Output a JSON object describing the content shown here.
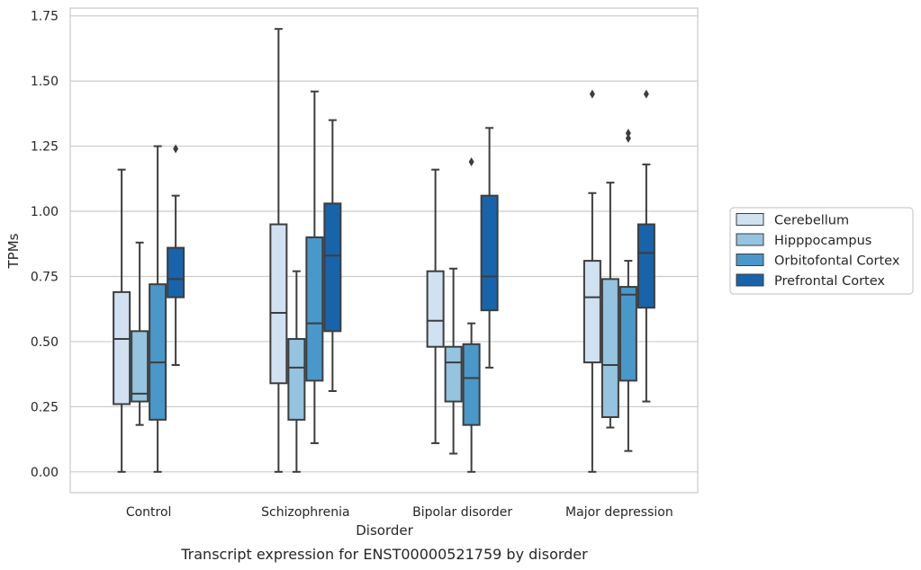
{
  "chart_data": {
    "type": "box",
    "title": "Transcript expression for ENST00000521759 by disorder",
    "xlabel": "Disorder",
    "ylabel": "TPMs",
    "ylim": [
      -0.08,
      1.78
    ],
    "yticks": [
      "0.00",
      "0.25",
      "0.50",
      "0.75",
      "1.00",
      "1.25",
      "1.50",
      "1.75"
    ],
    "ytick_values": [
      0,
      0.25,
      0.5,
      0.75,
      1.0,
      1.25,
      1.5,
      1.75
    ],
    "grid": true,
    "legend_position": "right",
    "categories": [
      "Control",
      "Schizophrenia",
      "Bipolar disorder",
      "Major depression"
    ],
    "series": [
      {
        "name": "Cerebellum",
        "color": "#d0e1f2",
        "boxes": [
          {
            "min": 0.0,
            "q1": 0.26,
            "median": 0.51,
            "q3": 0.69,
            "max": 1.16,
            "outliers": []
          },
          {
            "min": 0.0,
            "q1": 0.34,
            "median": 0.61,
            "q3": 0.95,
            "max": 1.7,
            "outliers": []
          },
          {
            "min": 0.11,
            "q1": 0.48,
            "median": 0.58,
            "q3": 0.77,
            "max": 1.16,
            "outliers": []
          },
          {
            "min": 0.0,
            "q1": 0.42,
            "median": 0.67,
            "q3": 0.81,
            "max": 1.07,
            "outliers": [
              1.45
            ]
          }
        ]
      },
      {
        "name": "Hipppocampus",
        "color": "#94c4df",
        "boxes": [
          {
            "min": 0.18,
            "q1": 0.27,
            "median": 0.3,
            "q3": 0.54,
            "max": 0.88,
            "outliers": []
          },
          {
            "min": 0.0,
            "q1": 0.2,
            "median": 0.4,
            "q3": 0.51,
            "max": 0.77,
            "outliers": []
          },
          {
            "min": 0.07,
            "q1": 0.27,
            "median": 0.42,
            "q3": 0.48,
            "max": 0.78,
            "outliers": []
          },
          {
            "min": 0.17,
            "q1": 0.21,
            "median": 0.41,
            "q3": 0.74,
            "max": 1.11,
            "outliers": []
          }
        ]
      },
      {
        "name": "Orbitofontal Cortex",
        "color": "#4a98c9",
        "boxes": [
          {
            "min": 0.0,
            "q1": 0.2,
            "median": 0.42,
            "q3": 0.72,
            "max": 1.25,
            "outliers": []
          },
          {
            "min": 0.11,
            "q1": 0.35,
            "median": 0.57,
            "q3": 0.9,
            "max": 1.46,
            "outliers": []
          },
          {
            "min": 0.0,
            "q1": 0.18,
            "median": 0.36,
            "q3": 0.49,
            "max": 0.57,
            "outliers": [
              1.19
            ]
          },
          {
            "min": 0.08,
            "q1": 0.35,
            "median": 0.68,
            "q3": 0.71,
            "max": 0.81,
            "outliers": [
              1.28,
              1.3
            ]
          }
        ]
      },
      {
        "name": "Prefrontal Cortex",
        "color": "#1764ab",
        "boxes": [
          {
            "min": 0.41,
            "q1": 0.67,
            "median": 0.74,
            "q3": 0.86,
            "max": 1.06,
            "outliers": [
              1.24
            ]
          },
          {
            "min": 0.31,
            "q1": 0.54,
            "median": 0.83,
            "q3": 1.03,
            "max": 1.35,
            "outliers": []
          },
          {
            "min": 0.4,
            "q1": 0.62,
            "median": 0.75,
            "q3": 1.06,
            "max": 1.32,
            "outliers": []
          },
          {
            "min": 0.27,
            "q1": 0.63,
            "median": 0.84,
            "q3": 0.95,
            "max": 1.18,
            "outliers": [
              1.45
            ]
          }
        ]
      }
    ]
  }
}
